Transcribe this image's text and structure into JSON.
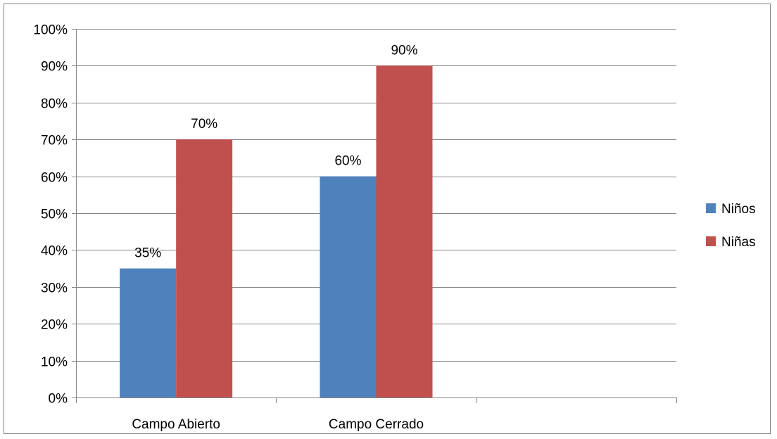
{
  "chart_data": {
    "type": "bar",
    "categories": [
      "Campo Abierto",
      "Campo Cerrado",
      ""
    ],
    "series": [
      {
        "name": "Niños",
        "values": [
          35,
          60,
          null
        ],
        "color": "#4f81bd"
      },
      {
        "name": "Niñas",
        "values": [
          70,
          90,
          null
        ],
        "color": "#c0504d"
      }
    ],
    "data_labels": [
      [
        "35%",
        "60%",
        ""
      ],
      [
        "70%",
        "90%",
        ""
      ]
    ],
    "y_ticks": [
      "0%",
      "10%",
      "20%",
      "30%",
      "40%",
      "50%",
      "60%",
      "70%",
      "80%",
      "90%",
      "100%"
    ],
    "ylim": [
      0,
      100
    ],
    "grid": true,
    "legend_position": "right",
    "gridline_color": "#868686"
  }
}
